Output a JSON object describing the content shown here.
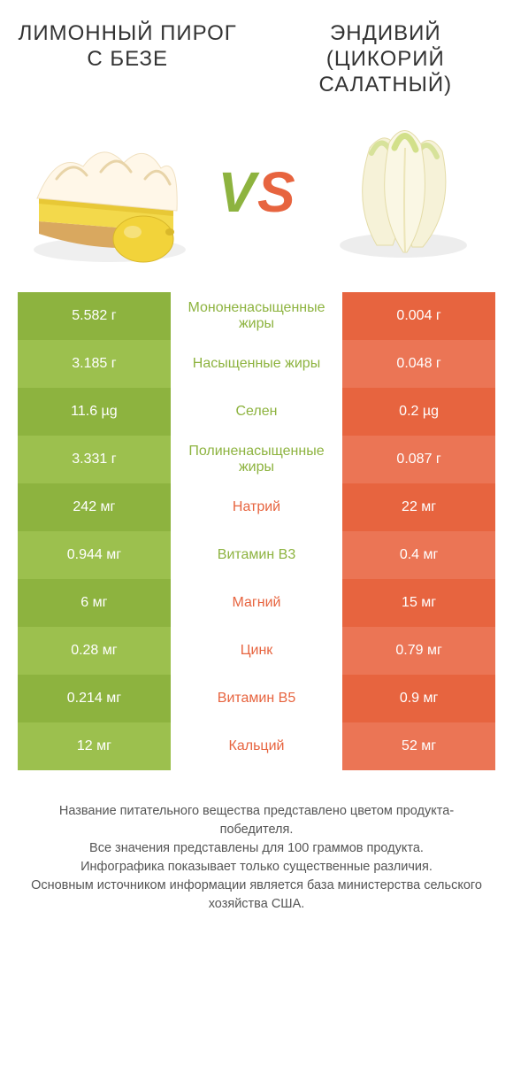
{
  "colors": {
    "left": "#8db33f",
    "right": "#e7643f",
    "leftAlt": "#9cc04e",
    "rightAlt": "#eb7555",
    "vsV": "#8db33f",
    "vsS": "#e7643f",
    "titleText": "#333333",
    "footerText": "#555555",
    "cellText": "#ffffff"
  },
  "titles": {
    "left": "ЛИМОННЫЙ ПИРОГ С БЕЗЕ",
    "right": "ЭНДИВИЙ (ЦИКОРИЙ САЛАТНЫЙ)"
  },
  "vs": {
    "v": "V",
    "s": "S"
  },
  "rows": [
    {
      "left": "5.582 г",
      "label": "Мононенасыщенные жиры",
      "right": "0.004 г",
      "winner": "left"
    },
    {
      "left": "3.185 г",
      "label": "Насыщенные жиры",
      "right": "0.048 г",
      "winner": "left"
    },
    {
      "left": "11.6 µg",
      "label": "Селен",
      "right": "0.2 µg",
      "winner": "left"
    },
    {
      "left": "3.331 г",
      "label": "Полиненасыщенные жиры",
      "right": "0.087 г",
      "winner": "left"
    },
    {
      "left": "242 мг",
      "label": "Натрий",
      "right": "22 мг",
      "winner": "right"
    },
    {
      "left": "0.944 мг",
      "label": "Витамин B3",
      "right": "0.4 мг",
      "winner": "left"
    },
    {
      "left": "6 мг",
      "label": "Магний",
      "right": "15 мг",
      "winner": "right"
    },
    {
      "left": "0.28 мг",
      "label": "Цинк",
      "right": "0.79 мг",
      "winner": "right"
    },
    {
      "left": "0.214 мг",
      "label": "Витамин B5",
      "right": "0.9 мг",
      "winner": "right"
    },
    {
      "left": "12 мг",
      "label": "Кальций",
      "right": "52 мг",
      "winner": "right"
    }
  ],
  "footer": {
    "l1": "Название питательного вещества представлено цветом продукта-победителя.",
    "l2": "Все значения представлены для 100 граммов продукта.",
    "l3": "Инфографика показывает только существенные различия.",
    "l4": "Основным источником информации является база министерства сельского хозяйства США."
  }
}
